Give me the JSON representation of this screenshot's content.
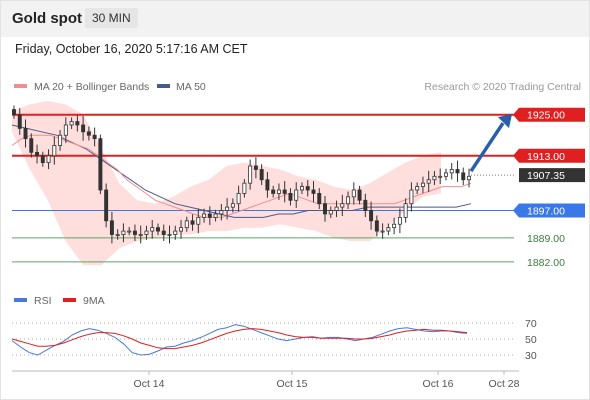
{
  "header": {
    "title": "Gold spot",
    "interval": "30 MIN"
  },
  "datetime": "Friday, October 16, 2020 5:17:16 AM CET",
  "legend": {
    "ma20": "MA 20 + Bollinger Bands",
    "ma50": "MA 50",
    "credit": "Research © 2020 Trading Central",
    "rsi": "RSI",
    "ma9": "9MA"
  },
  "colors": {
    "resistance": "#e02020",
    "support_blue": "#3b78e7",
    "support_green": "#5aa860",
    "candle": "#333333",
    "bands": "#ffd3d3",
    "ma20": "#ee8f8f",
    "ma50": "#4a5a8a",
    "rsi": "#4a78d8",
    "ma9": "#e02020",
    "arrow": "#2a5fa8",
    "current_tag": "#333333"
  },
  "chart_data": [
    {
      "type": "candlestick",
      "x_ticks": [
        "Oct 14",
        "Oct 15",
        "Oct 16",
        "Oct 28"
      ],
      "ylim": [
        1877,
        1929
      ],
      "current_price": 1907.35,
      "levels": [
        {
          "label": "1925.00",
          "value": 1925.0,
          "kind": "resistance"
        },
        {
          "label": "1913.00",
          "value": 1913.0,
          "kind": "resistance"
        },
        {
          "label": "1897.00",
          "value": 1897.0,
          "kind": "pivot"
        },
        {
          "label": "1889.00",
          "value": 1889.0,
          "kind": "support"
        },
        {
          "label": "1882.00",
          "value": 1882.0,
          "kind": "support"
        }
      ],
      "forecast_arrow": {
        "from": 1908.5,
        "to": 1924.0
      },
      "close": [
        1925,
        1921,
        1918,
        1914,
        1913,
        1911,
        1913,
        1916,
        1919,
        1922,
        1923,
        1922,
        1920,
        1919,
        1918,
        1903,
        1894,
        1890,
        1890,
        1891,
        1891,
        1890,
        1890,
        1891,
        1892,
        1891,
        1890,
        1890,
        1891,
        1892,
        1894,
        1893,
        1895,
        1896,
        1895,
        1896,
        1897,
        1898,
        1899,
        1902,
        1905,
        1910,
        1909,
        1906,
        1903,
        1902,
        1903,
        1902,
        1900,
        1903,
        1904,
        1903,
        1902,
        1899,
        1896,
        1897,
        1898,
        1899,
        1901,
        1903,
        1900,
        1897,
        1894,
        1891,
        1891,
        1892,
        1893,
        1895,
        1899,
        1903,
        1904,
        1905,
        1906,
        1907,
        1907,
        1908,
        1909,
        1908,
        1906,
        1907
      ],
      "ma20": [
        1916,
        1918,
        1919,
        1919,
        1919,
        1918,
        1917,
        1916,
        1915,
        1913,
        1911,
        1909,
        1906,
        1904,
        1902,
        1900,
        1899,
        1898,
        1897,
        1896,
        1895,
        1895,
        1895,
        1896,
        1897,
        1898,
        1899,
        1900,
        1901,
        1902,
        1901,
        1900,
        1899,
        1899,
        1899,
        1899,
        1899,
        1899,
        1899,
        1899,
        1899,
        1900,
        1901,
        1902,
        1903,
        1904,
        1904,
        1904,
        1905
      ],
      "ma50": [
        1922,
        1921,
        1920,
        1919,
        1917,
        1915,
        1912,
        1909,
        1906,
        1903,
        1901,
        1899,
        1898,
        1897,
        1896,
        1895,
        1895,
        1895,
        1896,
        1896,
        1897,
        1897,
        1897,
        1897,
        1898,
        1898,
        1898,
        1898,
        1898,
        1898,
        1898,
        1899
      ],
      "bands_upper": [
        1926,
        1928,
        1929,
        1928,
        1925,
        1915,
        1905,
        1900,
        1899,
        1901,
        1904,
        1906,
        1910,
        1911,
        1910,
        1909,
        1907,
        1906,
        1904,
        1903,
        1905,
        1908,
        1911,
        1913,
        1914
      ],
      "bands_lower": [
        1920,
        1909,
        1900,
        1888,
        1881,
        1881,
        1886,
        1888,
        1889,
        1890,
        1890,
        1891,
        1891,
        1892,
        1892,
        1893,
        1892,
        1891,
        1889,
        1888,
        1888,
        1892,
        1897,
        1901,
        1902
      ]
    },
    {
      "type": "line",
      "title": "RSI",
      "y_ticks": [
        "70",
        "50",
        "30"
      ],
      "ylim": [
        15,
        80
      ],
      "rsi": [
        48,
        40,
        33,
        30,
        36,
        42,
        47,
        55,
        60,
        63,
        61,
        57,
        52,
        44,
        33,
        30,
        31,
        35,
        40,
        41,
        45,
        48,
        52,
        57,
        62,
        64,
        68,
        66,
        62,
        58,
        54,
        50,
        48,
        50,
        52,
        53,
        51,
        52,
        52,
        50,
        48,
        50,
        52,
        56,
        60,
        63,
        64,
        62,
        60,
        59,
        60,
        60,
        58,
        57
      ],
      "ma9": [
        50,
        47,
        44,
        41,
        41,
        42,
        45,
        49,
        53,
        56,
        58,
        58,
        57,
        54,
        50,
        45,
        42,
        39,
        38,
        38,
        40,
        42,
        45,
        49,
        53,
        57,
        60,
        62,
        63,
        62,
        60,
        58,
        55,
        53,
        52,
        52,
        51,
        51,
        51,
        51,
        50,
        50,
        51,
        53,
        55,
        58,
        60,
        61,
        62,
        61,
        61,
        60,
        59,
        58
      ]
    }
  ]
}
